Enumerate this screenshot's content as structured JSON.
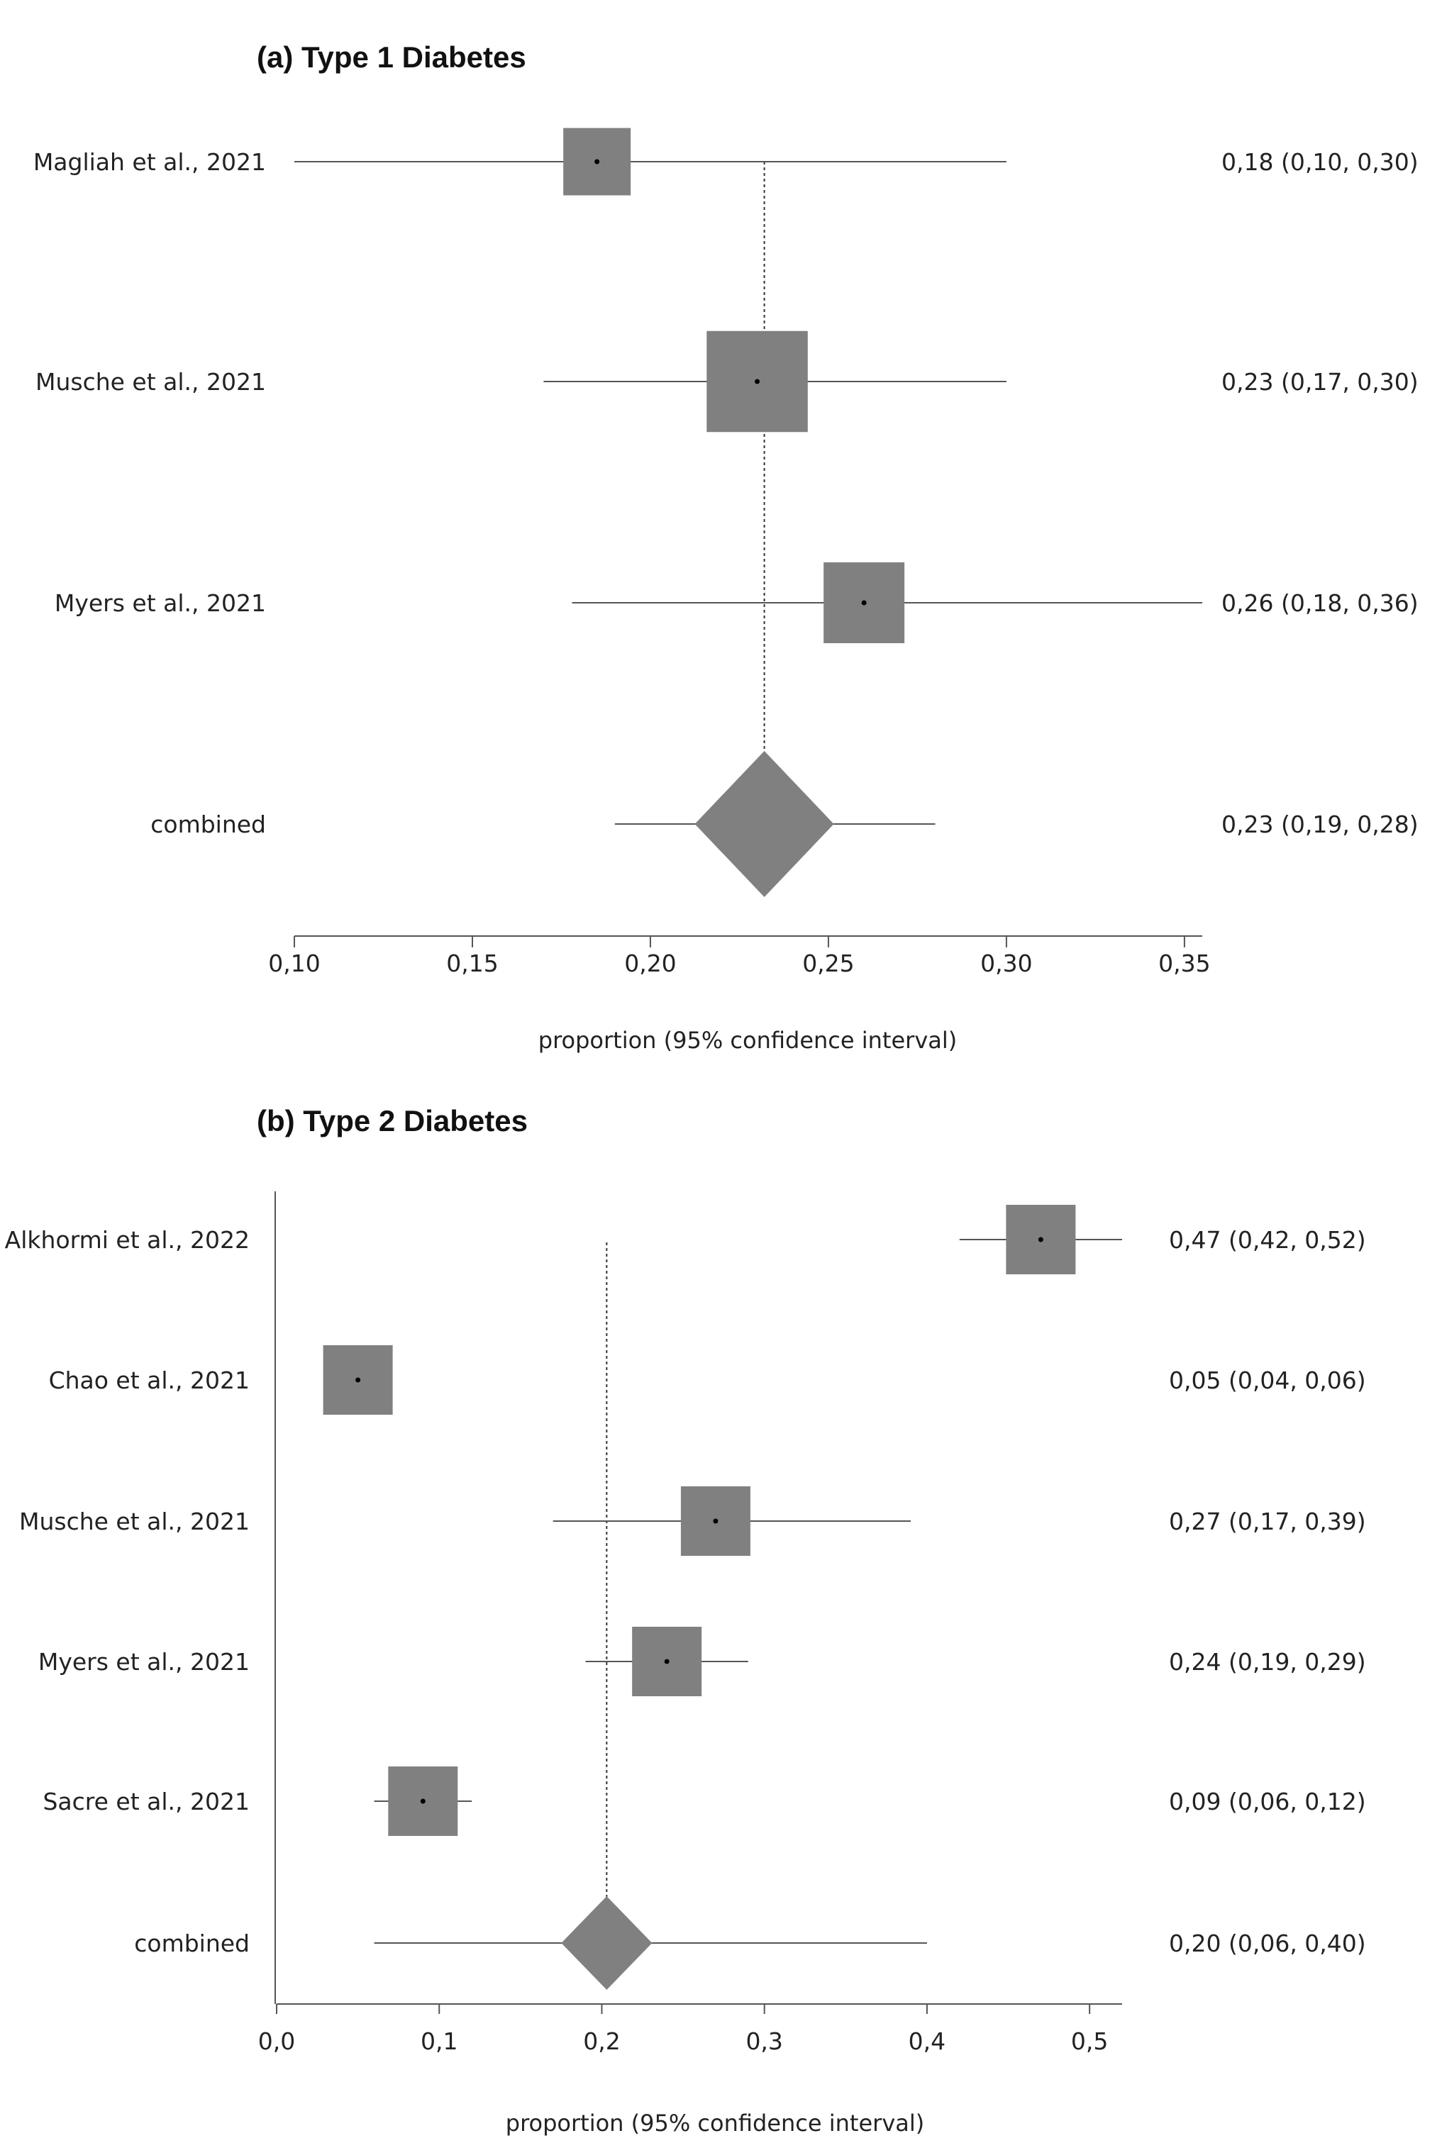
{
  "chart_data": [
    {
      "type": "forest",
      "title": "(a)  Type 1 Diabetes",
      "xlabel": "proportion (95% confidence interval)",
      "xlim": [
        0.1,
        0.355
      ],
      "xticks": [
        0.1,
        0.15,
        0.2,
        0.25,
        0.3,
        0.35
      ],
      "xtick_labels": [
        "0,10",
        "0,15",
        "0,20",
        "0,25",
        "0,30",
        "0,35"
      ],
      "reference_line": 0.232,
      "studies": [
        {
          "name": "Magliah et al., 2021",
          "estimate": 0.185,
          "lower": 0.1,
          "upper": 0.3,
          "text": "0,18 (0,10, 0,30)",
          "weight": 1.0
        },
        {
          "name": "Musche et al., 2021",
          "estimate": 0.23,
          "lower": 0.17,
          "upper": 0.3,
          "text": "0,23 (0,17, 0,30)",
          "weight": 1.5
        },
        {
          "name": "Myers et al., 2021",
          "estimate": 0.26,
          "lower": 0.178,
          "upper": 0.355,
          "text": "0,26 (0,18, 0,36)",
          "weight": 1.2
        }
      ],
      "combined": {
        "name": "combined",
        "estimate": 0.232,
        "lower": 0.19,
        "upper": 0.28,
        "text": "0,23 (0,19, 0,28)"
      }
    },
    {
      "type": "forest",
      "title": "(b)  Type 2 Diabetes",
      "xlabel": "proportion (95% confidence interval)",
      "xlim": [
        0.0,
        0.52
      ],
      "xticks": [
        0.0,
        0.1,
        0.2,
        0.3,
        0.4,
        0.5
      ],
      "xtick_labels": [
        "0,0",
        "0,1",
        "0,2",
        "0,3",
        "0,4",
        "0,5"
      ],
      "reference_line": 0.203,
      "studies": [
        {
          "name": "Alkhormi et al., 2022",
          "estimate": 0.47,
          "lower": 0.42,
          "upper": 0.52,
          "text": "0,47 (0,42, 0,52)",
          "weight": 1.0
        },
        {
          "name": "Chao et al., 2021",
          "estimate": 0.05,
          "lower": 0.04,
          "upper": 0.06,
          "text": "0,05 (0,04, 0,06)",
          "weight": 1.0
        },
        {
          "name": "Musche et al., 2021",
          "estimate": 0.27,
          "lower": 0.17,
          "upper": 0.39,
          "text": "0,27 (0,17, 0,39)",
          "weight": 1.0
        },
        {
          "name": "Myers et al., 2021",
          "estimate": 0.24,
          "lower": 0.19,
          "upper": 0.29,
          "text": "0,24 (0,19, 0,29)",
          "weight": 1.0
        },
        {
          "name": "Sacre et al., 2021",
          "estimate": 0.09,
          "lower": 0.06,
          "upper": 0.12,
          "text": "0,09 (0,06, 0,12)",
          "weight": 1.0
        }
      ],
      "combined": {
        "name": "combined",
        "estimate": 0.203,
        "lower": 0.06,
        "upper": 0.4,
        "text": "0,20 (0,06, 0,40)"
      }
    }
  ]
}
